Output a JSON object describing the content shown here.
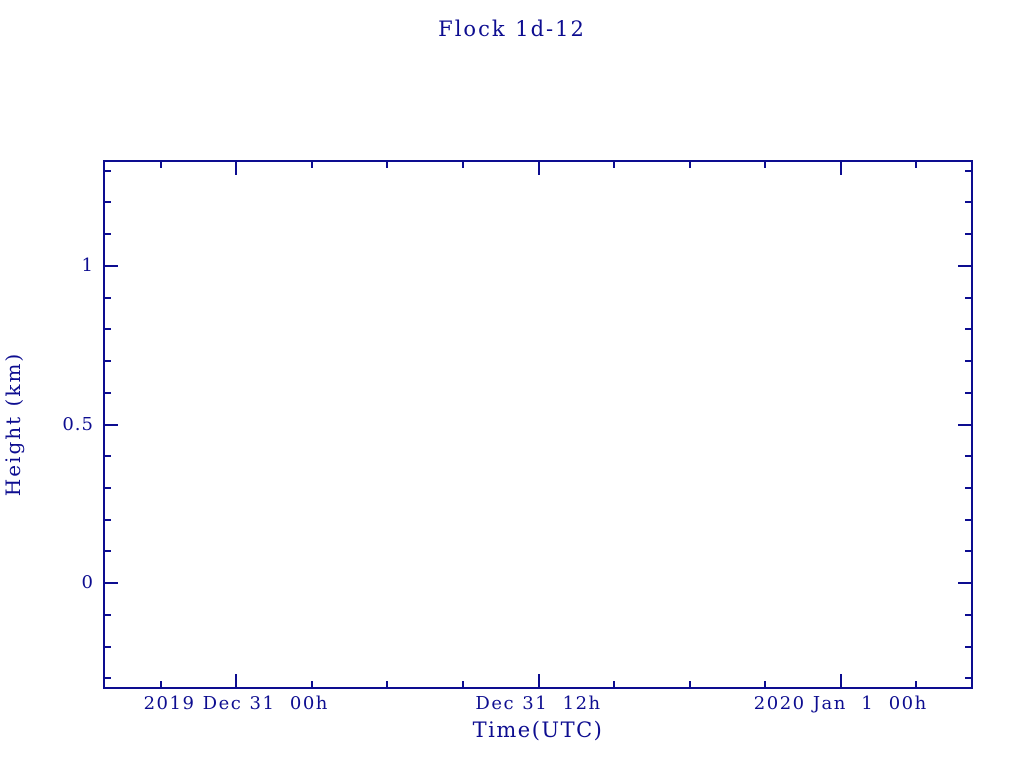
{
  "page": {
    "background": "#ffffff",
    "accent": "#0d0d90"
  },
  "chart_data": {
    "type": "line",
    "title": "Flock 1d-12",
    "xlabel": "Time(UTC)",
    "ylabel": "Height (km)",
    "x_axis_unit": "hours since 2019 Dec 31 00h UTC",
    "xlim": [
      -5.29,
      29.25
    ],
    "ylim": [
      -0.334,
      1.334
    ],
    "x_major_ticks": [
      {
        "value": 0,
        "label": "2019 Dec 31  00h"
      },
      {
        "value": 12,
        "label": "Dec 31  12h"
      },
      {
        "value": 24,
        "label": "2020 Jan  1  00h"
      }
    ],
    "x_minor_ticks": [
      -3,
      3,
      6,
      9,
      15,
      18,
      21,
      27
    ],
    "y_major_ticks": [
      {
        "value": 0,
        "label": "0"
      },
      {
        "value": 0.5,
        "label": "0.5"
      },
      {
        "value": 1,
        "label": "1"
      }
    ],
    "y_minor_ticks": [
      -0.3,
      -0.2,
      -0.1,
      0.1,
      0.2,
      0.3,
      0.4,
      0.6,
      0.7,
      0.8,
      0.9,
      1.1,
      1.2,
      1.3
    ],
    "grid": false,
    "legend": null,
    "series": []
  }
}
